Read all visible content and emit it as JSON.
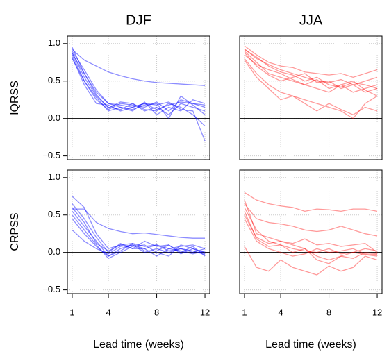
{
  "chart_data": [
    {
      "type": "line",
      "title": "DJF",
      "ylabel": "IQRSS",
      "color": "#0000ff",
      "opacity": 0.45,
      "hline": 0,
      "grid": true,
      "x": [
        1,
        2,
        3,
        4,
        5,
        6,
        7,
        8,
        9,
        10,
        11,
        12
      ],
      "xlim": [
        0.6,
        12.4
      ],
      "xticks": [
        1,
        4,
        8,
        12
      ],
      "ylim": [
        -0.55,
        1.1
      ],
      "yticks": [
        {
          "value": -0.5,
          "label": "−0.5"
        },
        {
          "value": 0,
          "label": "0.0"
        },
        0.5,
        {
          "value": 1,
          "label": "1.0"
        }
      ],
      "series": [
        {
          "values": [
            0.92,
            0.78,
            0.7,
            0.62,
            0.57,
            0.53,
            0.5,
            0.48,
            0.47,
            0.46,
            0.45,
            0.44
          ]
        },
        {
          "values": [
            0.95,
            0.6,
            0.35,
            0.2,
            0.18,
            0.15,
            0.2,
            0.12,
            0.18,
            0.22,
            0.2,
            0.18
          ]
        },
        {
          "values": [
            0.88,
            0.55,
            0.3,
            0.15,
            0.12,
            0.2,
            0.1,
            0.15,
            0.05,
            0.2,
            0.15,
            0.1
          ]
        },
        {
          "values": [
            0.85,
            0.5,
            0.25,
            0.12,
            0.2,
            0.18,
            0.15,
            0.22,
            0.1,
            0.25,
            0.2,
            0.15
          ]
        },
        {
          "values": [
            0.9,
            0.65,
            0.38,
            0.2,
            0.15,
            0.1,
            0.22,
            0.05,
            0.15,
            0.1,
            0.25,
            0.2
          ]
        },
        {
          "values": [
            0.82,
            0.45,
            0.2,
            0.18,
            0.1,
            0.15,
            0.2,
            0.18,
            0.22,
            0.12,
            0.1,
            -0.3
          ]
        },
        {
          "values": [
            0.87,
            0.6,
            0.32,
            0.14,
            0.22,
            0.2,
            0.12,
            0.1,
            0.2,
            0.15,
            0.05,
            -0.1
          ]
        },
        {
          "values": [
            0.8,
            0.5,
            0.28,
            0.1,
            0.15,
            0.12,
            0.18,
            0.2,
            0.0,
            0.3,
            0.18,
            0.05
          ]
        }
      ]
    },
    {
      "type": "line",
      "title": "JJA",
      "color": "#ff0000",
      "opacity": 0.4,
      "hline": 0,
      "grid": true,
      "x": [
        1,
        2,
        3,
        4,
        5,
        6,
        7,
        8,
        9,
        10,
        11,
        12
      ],
      "xlim": [
        0.6,
        12.4
      ],
      "xticks": [
        1,
        4,
        8,
        12
      ],
      "ylim": [
        -0.55,
        1.1
      ],
      "yticks": [
        -0.5,
        0,
        0.5,
        1
      ],
      "series": [
        {
          "values": [
            0.97,
            0.85,
            0.75,
            0.7,
            0.68,
            0.62,
            0.6,
            0.58,
            0.6,
            0.55,
            0.6,
            0.65
          ]
        },
        {
          "values": [
            0.93,
            0.8,
            0.72,
            0.65,
            0.6,
            0.55,
            0.5,
            0.48,
            0.52,
            0.45,
            0.5,
            0.55
          ]
        },
        {
          "values": [
            0.9,
            0.75,
            0.6,
            0.55,
            0.5,
            0.45,
            0.52,
            0.4,
            0.45,
            0.35,
            0.4,
            0.45
          ]
        },
        {
          "values": [
            0.88,
            0.7,
            0.58,
            0.5,
            0.55,
            0.6,
            0.48,
            0.5,
            0.4,
            0.45,
            0.35,
            0.4
          ]
        },
        {
          "values": [
            0.85,
            0.72,
            0.65,
            0.6,
            0.52,
            0.45,
            0.4,
            0.35,
            0.45,
            0.5,
            0.38,
            0.3
          ]
        },
        {
          "values": [
            0.8,
            0.6,
            0.45,
            0.35,
            0.3,
            0.25,
            0.2,
            0.15,
            0.1,
            0.0,
            0.2,
            0.3
          ]
        },
        {
          "values": [
            0.78,
            0.55,
            0.4,
            0.25,
            0.3,
            0.2,
            0.1,
            0.2,
            0.12,
            0.05,
            0.15,
            0.1
          ]
        },
        {
          "values": [
            0.92,
            0.82,
            0.7,
            0.62,
            0.58,
            0.5,
            0.55,
            0.45,
            0.42,
            0.48,
            0.45,
            0.4
          ]
        }
      ]
    },
    {
      "type": "line",
      "ylabel": "CRPSS",
      "xlabel": "Lead time (weeks)",
      "color": "#0000ff",
      "opacity": 0.45,
      "hline": 0,
      "grid": true,
      "x": [
        1,
        2,
        3,
        4,
        5,
        6,
        7,
        8,
        9,
        10,
        11,
        12
      ],
      "xlim": [
        0.6,
        12.4
      ],
      "xticks": [
        1,
        4,
        8,
        12
      ],
      "ylim": [
        -0.55,
        1.1
      ],
      "yticks": [
        {
          "value": -0.5,
          "label": "−0.5"
        },
        {
          "value": 0,
          "label": "0.0"
        },
        0.5,
        {
          "value": 1,
          "label": "1.0"
        }
      ],
      "series": [
        {
          "values": [
            0.58,
            0.58,
            0.4,
            0.32,
            0.28,
            0.25,
            0.26,
            0.24,
            0.22,
            0.2,
            0.19,
            0.19
          ]
        },
        {
          "values": [
            0.75,
            0.6,
            0.25,
            0.05,
            0.1,
            0.12,
            0.08,
            0.1,
            0.05,
            0.08,
            0.1,
            0.05
          ]
        },
        {
          "values": [
            0.55,
            0.35,
            0.15,
            -0.05,
            0.05,
            0.1,
            0.0,
            0.05,
            0.0,
            0.05,
            0.02,
            -0.03
          ]
        },
        {
          "values": [
            0.5,
            0.3,
            0.1,
            -0.08,
            0.0,
            0.08,
            0.1,
            0.0,
            -0.05,
            0.1,
            0.05,
            0.0
          ]
        },
        {
          "values": [
            0.65,
            0.45,
            0.2,
            0.0,
            0.12,
            0.05,
            0.15,
            0.08,
            0.1,
            0.0,
            0.08,
            -0.05
          ]
        },
        {
          "values": [
            0.3,
            0.15,
            0.05,
            -0.02,
            0.08,
            0.1,
            0.05,
            -0.05,
            0.05,
            0.02,
            -0.02,
            0.02
          ]
        },
        {
          "values": [
            0.6,
            0.4,
            0.12,
            0.02,
            0.1,
            0.05,
            0.05,
            0.1,
            0.02,
            0.05,
            0.0,
            0.05
          ]
        },
        {
          "values": [
            0.45,
            0.25,
            0.08,
            -0.05,
            0.02,
            0.12,
            0.02,
            0.02,
            0.1,
            -0.02,
            0.05,
            -0.02
          ]
        }
      ]
    },
    {
      "type": "line",
      "xlabel": "Lead time (weeks)",
      "color": "#ff0000",
      "opacity": 0.4,
      "hline": 0,
      "grid": true,
      "x": [
        1,
        2,
        3,
        4,
        5,
        6,
        7,
        8,
        9,
        10,
        11,
        12
      ],
      "xlim": [
        0.6,
        12.4
      ],
      "xticks": [
        1,
        4,
        8,
        12
      ],
      "ylim": [
        -0.55,
        1.1
      ],
      "yticks": [
        -0.5,
        0,
        0.5,
        1
      ],
      "series": [
        {
          "values": [
            0.8,
            0.7,
            0.65,
            0.62,
            0.6,
            0.55,
            0.58,
            0.57,
            0.55,
            0.58,
            0.58,
            0.55
          ]
        },
        {
          "values": [
            0.65,
            0.45,
            0.4,
            0.38,
            0.35,
            0.3,
            0.28,
            0.3,
            0.35,
            0.3,
            0.25,
            0.22
          ]
        },
        {
          "values": [
            0.6,
            0.3,
            0.15,
            0.1,
            0.05,
            0.02,
            0.0,
            0.05,
            -0.02,
            0.0,
            0.05,
            0.02
          ]
        },
        {
          "values": [
            0.5,
            0.2,
            0.12,
            0.15,
            0.1,
            0.05,
            -0.05,
            -0.1,
            -0.05,
            0.0,
            -0.03,
            -0.05
          ]
        },
        {
          "values": [
            0.08,
            -0.2,
            -0.25,
            -0.1,
            -0.2,
            -0.25,
            -0.3,
            -0.18,
            -0.25,
            -0.2,
            -0.05,
            -0.1
          ]
        },
        {
          "values": [
            0.7,
            0.25,
            0.2,
            0.15,
            0.12,
            0.18,
            0.1,
            0.12,
            0.08,
            0.1,
            0.12,
            0.0
          ]
        },
        {
          "values": [
            0.45,
            0.15,
            0.05,
            0.0,
            -0.05,
            -0.02,
            0.05,
            0.0,
            0.02,
            0.05,
            -0.02,
            -0.03
          ]
        },
        {
          "values": [
            0.55,
            0.18,
            0.08,
            0.1,
            0.0,
            0.05,
            -0.1,
            -0.15,
            -0.05,
            -0.08,
            0.0,
            -0.02
          ]
        }
      ]
    }
  ]
}
